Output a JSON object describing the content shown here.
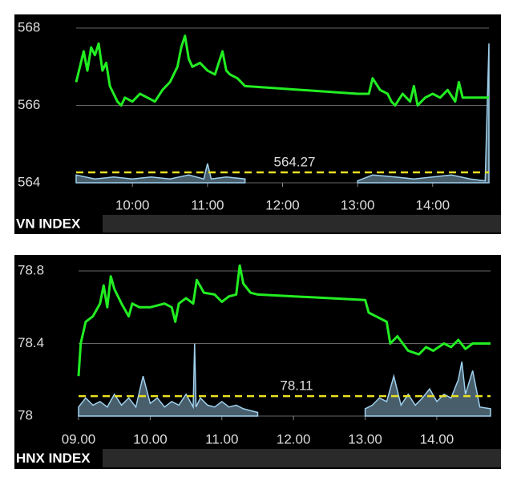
{
  "chart_data": [
    {
      "type": "line",
      "title": "VN INDEX",
      "x": [
        9.25,
        9.3,
        9.35,
        9.4,
        9.45,
        9.5,
        9.55,
        9.6,
        9.65,
        9.7,
        9.75,
        9.8,
        9.85,
        9.9,
        10.0,
        10.1,
        10.2,
        10.3,
        10.4,
        10.5,
        10.6,
        10.65,
        10.7,
        10.75,
        10.8,
        10.9,
        11.0,
        11.1,
        11.2,
        11.25,
        11.3,
        11.4,
        11.5,
        13.0,
        13.15,
        13.2,
        13.3,
        13.4,
        13.45,
        13.5,
        13.6,
        13.7,
        13.75,
        13.8,
        13.9,
        14.0,
        14.1,
        14.2,
        14.3,
        14.35,
        14.4,
        14.5,
        14.75
      ],
      "series": [
        {
          "color": "#22ee22",
          "values": [
            566.6,
            567.0,
            567.4,
            566.9,
            567.5,
            567.3,
            567.6,
            566.9,
            567.1,
            566.5,
            566.3,
            566.1,
            566.0,
            566.2,
            566.1,
            566.3,
            566.2,
            566.1,
            566.4,
            566.6,
            567.0,
            567.5,
            567.8,
            567.2,
            567.0,
            567.1,
            566.9,
            566.8,
            567.4,
            566.9,
            566.8,
            566.7,
            566.5,
            566.3,
            566.3,
            566.7,
            566.4,
            566.3,
            566.1,
            566.0,
            566.3,
            566.1,
            566.5,
            566.0,
            566.2,
            566.3,
            566.2,
            566.4,
            566.1,
            566.6,
            566.2,
            566.2,
            566.2
          ]
        }
      ],
      "volume": {
        "color": "#9fd0ee",
        "x": [
          9.25,
          9.5,
          9.75,
          10.0,
          10.25,
          10.5,
          10.75,
          10.95,
          11.0,
          11.05,
          11.25,
          11.5,
          12.0,
          13.0,
          13.2,
          13.5,
          13.75,
          14.0,
          14.25,
          14.5,
          14.7,
          14.75
        ],
        "values": [
          564.2,
          564.1,
          564.15,
          564.1,
          564.15,
          564.1,
          564.2,
          564.1,
          564.5,
          564.1,
          564.15,
          564.1,
          null,
          564.05,
          564.2,
          564.15,
          564.1,
          564.15,
          564.2,
          564.1,
          564.05,
          567.6
        ]
      },
      "reference": 564.27,
      "reference_color": "#e8e020",
      "xlim": [
        9.25,
        14.75
      ],
      "xticks": [
        {
          "value": 10,
          "label": "10:00"
        },
        {
          "value": 11,
          "label": "11:00"
        },
        {
          "value": 12,
          "label": "12:00"
        },
        {
          "value": 13,
          "label": "13:00"
        },
        {
          "value": 14,
          "label": "14:00"
        }
      ],
      "ylim": [
        564,
        568
      ],
      "yticks": [
        564,
        566,
        568
      ],
      "grid": true
    },
    {
      "type": "line",
      "title": "HNX INDEX",
      "x": [
        9.0,
        9.03,
        9.1,
        9.2,
        9.3,
        9.35,
        9.4,
        9.45,
        9.5,
        9.6,
        9.7,
        9.75,
        9.85,
        10.0,
        10.2,
        10.3,
        10.35,
        10.4,
        10.5,
        10.6,
        10.65,
        10.75,
        10.9,
        11.0,
        11.1,
        11.2,
        11.25,
        11.3,
        11.4,
        11.5,
        13.0,
        13.05,
        13.15,
        13.3,
        13.35,
        13.45,
        13.6,
        13.75,
        13.85,
        13.95,
        14.1,
        14.2,
        14.3,
        14.4,
        14.5,
        14.75
      ],
      "series": [
        {
          "color": "#22ee22",
          "values": [
            78.22,
            78.4,
            78.52,
            78.55,
            78.62,
            78.72,
            78.6,
            78.77,
            78.7,
            78.62,
            78.55,
            78.62,
            78.6,
            78.6,
            78.62,
            78.6,
            78.52,
            78.62,
            78.65,
            78.62,
            78.75,
            78.68,
            78.67,
            78.63,
            78.66,
            78.67,
            78.83,
            78.73,
            78.68,
            78.67,
            78.64,
            78.57,
            78.55,
            78.52,
            78.4,
            78.44,
            78.36,
            78.34,
            78.38,
            78.36,
            78.4,
            78.38,
            78.42,
            78.37,
            78.4,
            78.4
          ]
        }
      ],
      "volume": {
        "color": "#9fd0ee",
        "x": [
          9.0,
          9.1,
          9.2,
          9.3,
          9.4,
          9.5,
          9.6,
          9.7,
          9.8,
          9.9,
          10.0,
          10.1,
          10.2,
          10.3,
          10.4,
          10.5,
          10.6,
          10.62,
          10.64,
          10.7,
          10.8,
          10.9,
          11.0,
          11.1,
          11.2,
          11.3,
          11.5,
          12.0,
          13.0,
          13.1,
          13.2,
          13.3,
          13.4,
          13.5,
          13.6,
          13.7,
          13.8,
          13.9,
          14.0,
          14.1,
          14.2,
          14.3,
          14.35,
          14.4,
          14.5,
          14.6,
          14.75
        ],
        "values": [
          78.05,
          78.1,
          78.06,
          78.08,
          78.05,
          78.12,
          78.06,
          78.1,
          78.05,
          78.22,
          78.07,
          78.1,
          78.05,
          78.08,
          78.06,
          78.12,
          78.05,
          78.4,
          78.05,
          78.1,
          78.06,
          78.05,
          78.08,
          78.05,
          78.06,
          78.04,
          78.02,
          null,
          78.04,
          78.06,
          78.1,
          78.08,
          78.22,
          78.06,
          78.12,
          78.06,
          78.1,
          78.15,
          78.08,
          78.12,
          78.1,
          78.2,
          78.3,
          78.12,
          78.25,
          78.05,
          78.04
        ]
      },
      "reference": 78.11,
      "reference_color": "#e8e020",
      "xlim": [
        9,
        14.75
      ],
      "xticks": [
        {
          "value": 9,
          "label": "09.00"
        },
        {
          "value": 10,
          "label": "10.00"
        },
        {
          "value": 11,
          "label": "11.00"
        },
        {
          "value": 12,
          "label": "12.00"
        },
        {
          "value": 13,
          "label": "13.00"
        },
        {
          "value": 14,
          "label": "14.00"
        }
      ],
      "ylim": [
        78,
        78.8
      ],
      "yticks": [
        78,
        78.4,
        78.8
      ],
      "grid": true
    }
  ]
}
